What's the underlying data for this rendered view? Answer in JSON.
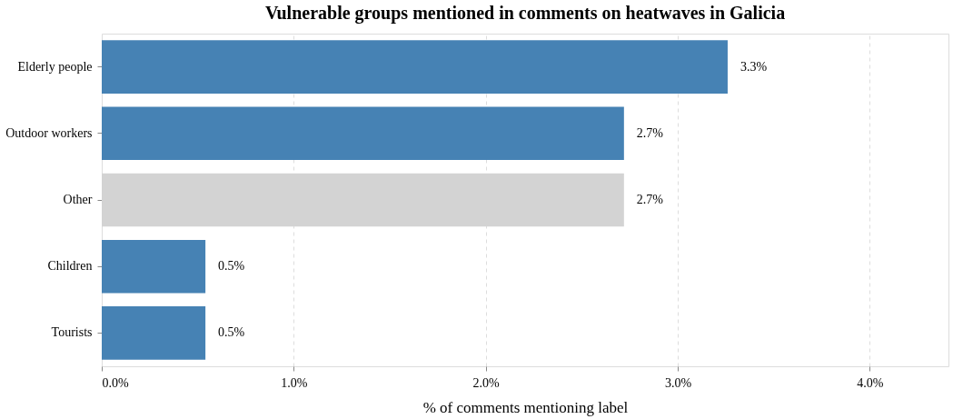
{
  "chart_data": {
    "type": "bar",
    "orientation": "horizontal",
    "title": "Vulnerable groups mentioned in comments on heatwaves in Galicia",
    "xlabel": "% of comments mentioning label",
    "categories": [
      "Elderly people",
      "Outdoor workers",
      "Other",
      "Children",
      "Tourists"
    ],
    "values": [
      3.26,
      2.72,
      2.72,
      0.54,
      0.54
    ],
    "colors": [
      "#4682b4",
      "#4682b4",
      "#d3d3d3",
      "#4682b4",
      "#4682b4"
    ],
    "value_labels": [
      "3.3%",
      "2.7%",
      "2.7%",
      "0.5%",
      "0.5%"
    ],
    "xlim": [
      0,
      4.41
    ],
    "xticks": [
      {
        "value": 0,
        "label": "0.0%"
      },
      {
        "value": 1,
        "label": "1.0%"
      },
      {
        "value": 2,
        "label": "2.0%"
      },
      {
        "value": 3,
        "label": "3.0%"
      },
      {
        "value": 4,
        "label": "4.0%"
      }
    ],
    "grid": "x"
  }
}
